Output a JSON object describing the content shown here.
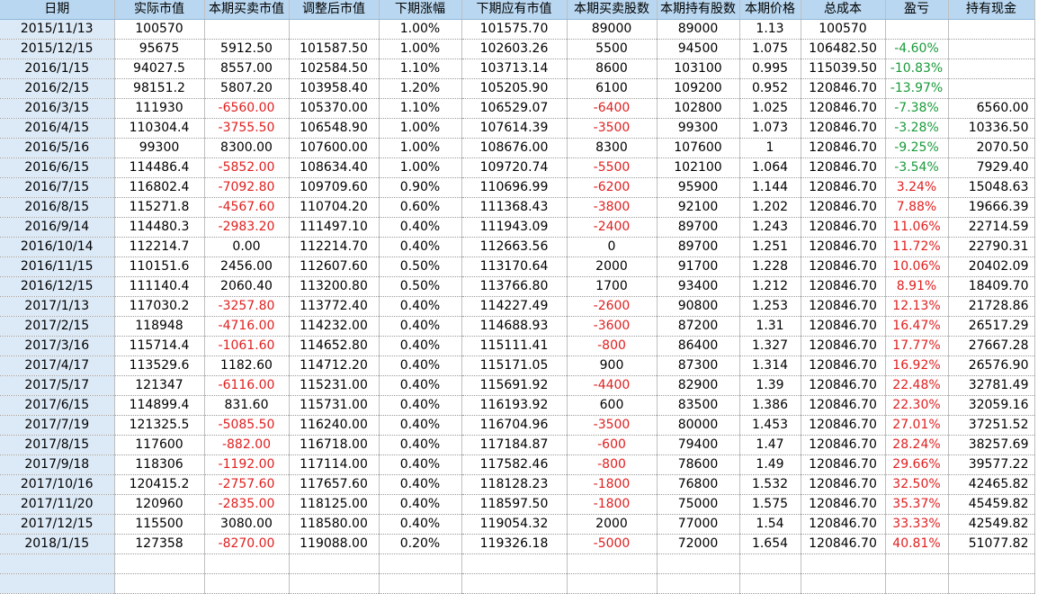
{
  "headers": [
    "日期",
    "实际市值",
    "本期买卖市值",
    "调整后市值",
    "下期涨幅",
    "下期应有市值",
    "本期买卖股数",
    "本期持有股数",
    "本期价格",
    "总成本",
    "盈亏",
    "持有现金"
  ],
  "colors": {
    "header_bg": "#b9d7f0",
    "date_bg": "#dce9f6",
    "negative": "#e02020",
    "loss": "#1a9a3a",
    "profit": "#e02020"
  },
  "rows": [
    [
      "2015/11/13",
      "100570",
      "",
      "",
      "1.00%",
      "101575.70",
      "89000",
      "89000",
      "1.13",
      "100570",
      "",
      ""
    ],
    [
      "2015/12/15",
      "95675",
      "5912.50",
      "101587.50",
      "1.00%",
      "102603.26",
      "5500",
      "94500",
      "1.075",
      "106482.50",
      "-4.60%",
      ""
    ],
    [
      "2016/1/15",
      "94027.5",
      "8557.00",
      "102584.50",
      "1.10%",
      "103713.14",
      "8600",
      "103100",
      "0.995",
      "115039.50",
      "-10.83%",
      ""
    ],
    [
      "2016/2/15",
      "98151.2",
      "5807.20",
      "103958.40",
      "1.20%",
      "105205.90",
      "6100",
      "109200",
      "0.952",
      "120846.70",
      "-13.97%",
      ""
    ],
    [
      "2016/3/15",
      "111930",
      "-6560.00",
      "105370.00",
      "1.10%",
      "106529.07",
      "-6400",
      "102800",
      "1.025",
      "120846.70",
      "-7.38%",
      "6560.00"
    ],
    [
      "2016/4/15",
      "110304.4",
      "-3755.50",
      "106548.90",
      "1.00%",
      "107614.39",
      "-3500",
      "99300",
      "1.073",
      "120846.70",
      "-3.28%",
      "10336.50"
    ],
    [
      "2016/5/16",
      "99300",
      "8300.00",
      "107600.00",
      "1.00%",
      "108676.00",
      "8300",
      "107600",
      "1",
      "120846.70",
      "-9.25%",
      "2070.50"
    ],
    [
      "2016/6/15",
      "114486.4",
      "-5852.00",
      "108634.40",
      "1.00%",
      "109720.74",
      "-5500",
      "102100",
      "1.064",
      "120846.70",
      "-3.54%",
      "7929.40"
    ],
    [
      "2016/7/15",
      "116802.4",
      "-7092.80",
      "109709.60",
      "0.90%",
      "110696.99",
      "-6200",
      "95900",
      "1.144",
      "120846.70",
      "3.24%",
      "15048.63"
    ],
    [
      "2016/8/15",
      "115271.8",
      "-4567.60",
      "110704.20",
      "0.60%",
      "111368.43",
      "-3800",
      "92100",
      "1.202",
      "120846.70",
      "7.88%",
      "19666.39"
    ],
    [
      "2016/9/14",
      "114480.3",
      "-2983.20",
      "111497.10",
      "0.40%",
      "111943.09",
      "-2400",
      "89700",
      "1.243",
      "120846.70",
      "11.06%",
      "22714.59"
    ],
    [
      "2016/10/14",
      "112214.7",
      "0.00",
      "112214.70",
      "0.40%",
      "112663.56",
      "0",
      "89700",
      "1.251",
      "120846.70",
      "11.72%",
      "22790.31"
    ],
    [
      "2016/11/15",
      "110151.6",
      "2456.00",
      "112607.60",
      "0.50%",
      "113170.64",
      "2000",
      "91700",
      "1.228",
      "120846.70",
      "10.06%",
      "20402.09"
    ],
    [
      "2016/12/15",
      "111140.4",
      "2060.40",
      "113200.80",
      "0.50%",
      "113766.80",
      "1700",
      "93400",
      "1.212",
      "120846.70",
      "8.91%",
      "18409.70"
    ],
    [
      "2017/1/13",
      "117030.2",
      "-3257.80",
      "113772.40",
      "0.40%",
      "114227.49",
      "-2600",
      "90800",
      "1.253",
      "120846.70",
      "12.13%",
      "21728.86"
    ],
    [
      "2017/2/15",
      "118948",
      "-4716.00",
      "114232.00",
      "0.40%",
      "114688.93",
      "-3600",
      "87200",
      "1.31",
      "120846.70",
      "16.47%",
      "26517.29"
    ],
    [
      "2017/3/16",
      "115714.4",
      "-1061.60",
      "114652.80",
      "0.40%",
      "115111.41",
      "-800",
      "86400",
      "1.327",
      "120846.70",
      "17.77%",
      "27667.28"
    ],
    [
      "2017/4/17",
      "113529.6",
      "1182.60",
      "114712.20",
      "0.40%",
      "115171.05",
      "900",
      "87300",
      "1.314",
      "120846.70",
      "16.92%",
      "26576.90"
    ],
    [
      "2017/5/17",
      "121347",
      "-6116.00",
      "115231.00",
      "0.40%",
      "115691.92",
      "-4400",
      "82900",
      "1.39",
      "120846.70",
      "22.48%",
      "32781.49"
    ],
    [
      "2017/6/15",
      "114899.4",
      "831.60",
      "115731.00",
      "0.40%",
      "116193.92",
      "600",
      "83500",
      "1.386",
      "120846.70",
      "22.30%",
      "32059.16"
    ],
    [
      "2017/7/19",
      "121325.5",
      "-5085.50",
      "116240.00",
      "0.40%",
      "116704.96",
      "-3500",
      "80000",
      "1.453",
      "120846.70",
      "27.01%",
      "37251.52"
    ],
    [
      "2017/8/15",
      "117600",
      "-882.00",
      "116718.00",
      "0.40%",
      "117184.87",
      "-600",
      "79400",
      "1.47",
      "120846.70",
      "28.24%",
      "38257.69"
    ],
    [
      "2017/9/18",
      "118306",
      "-1192.00",
      "117114.00",
      "0.40%",
      "117582.46",
      "-800",
      "78600",
      "1.49",
      "120846.70",
      "29.66%",
      "39577.22"
    ],
    [
      "2017/10/16",
      "120415.2",
      "-2757.60",
      "117657.60",
      "0.40%",
      "118128.23",
      "-1800",
      "76800",
      "1.532",
      "120846.70",
      "32.50%",
      "42465.82"
    ],
    [
      "2017/11/20",
      "120960",
      "-2835.00",
      "118125.00",
      "0.40%",
      "118597.50",
      "-1800",
      "75000",
      "1.575",
      "120846.70",
      "35.37%",
      "45459.82"
    ],
    [
      "2017/12/15",
      "115500",
      "3080.00",
      "118580.00",
      "0.40%",
      "119054.32",
      "2000",
      "77000",
      "1.54",
      "120846.70",
      "33.33%",
      "42549.82"
    ],
    [
      "2018/1/15",
      "127358",
      "-8270.00",
      "119088.00",
      "0.20%",
      "119326.18",
      "-5000",
      "72000",
      "1.654",
      "120846.70",
      "40.81%",
      "51077.82"
    ]
  ]
}
